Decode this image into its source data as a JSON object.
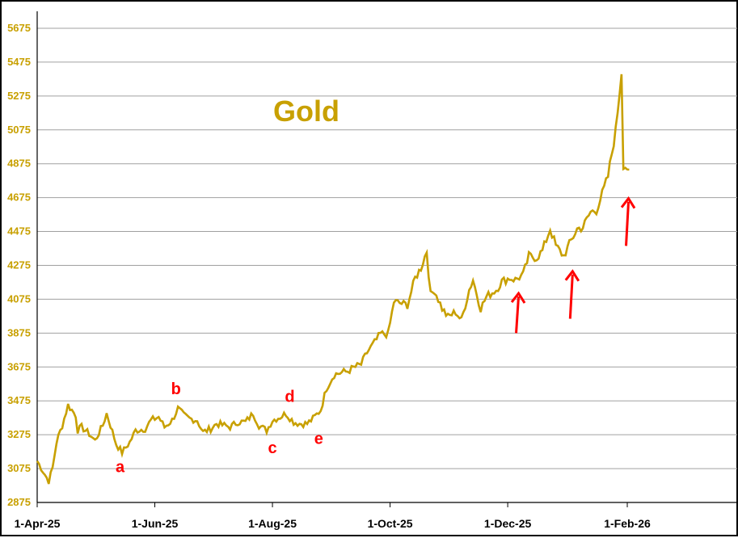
{
  "chart_data": {
    "type": "line",
    "title": "Gold",
    "xlabel": "",
    "ylabel": "",
    "y_ticks": [
      "2875",
      "3075",
      "3275",
      "3475",
      "3675",
      "3875",
      "4075",
      "4275",
      "4475",
      "4675",
      "4875",
      "5075",
      "5275",
      "5475",
      "5675"
    ],
    "ylim": [
      2875,
      5775
    ],
    "x_ticks": [
      "1-Apr-25",
      "1-Jun-25",
      "1-Aug-25",
      "1-Oct-25",
      "1-Dec-25",
      "1-Feb-26"
    ],
    "xlim": [
      "2025-04-01",
      "2026-03-30"
    ],
    "grid": "horizontal",
    "legend": "none",
    "colors": {
      "line": "#c8a000",
      "title": "#c8a000",
      "annotation": "#ff0000",
      "grid": "#a0a0a0"
    },
    "series": [
      {
        "x": [
          "2025-04-01",
          "2025-04-03",
          "2025-04-07",
          "2025-04-09",
          "2025-04-11",
          "2025-04-14",
          "2025-04-17",
          "2025-04-21",
          "2025-04-22",
          "2025-04-24",
          "2025-04-28",
          "2025-05-01",
          "2025-05-05",
          "2025-05-07",
          "2025-05-09",
          "2025-05-12",
          "2025-05-15",
          "2025-05-19",
          "2025-05-22",
          "2025-05-27",
          "2025-05-30",
          "2025-06-03",
          "2025-06-06",
          "2025-06-10",
          "2025-06-13",
          "2025-06-16",
          "2025-06-19",
          "2025-06-23",
          "2025-06-26",
          "2025-06-30",
          "2025-07-03",
          "2025-07-07",
          "2025-07-10",
          "2025-07-14",
          "2025-07-18",
          "2025-07-22",
          "2025-07-25",
          "2025-07-29",
          "2025-08-01",
          "2025-08-05",
          "2025-08-08",
          "2025-08-12",
          "2025-08-15",
          "2025-08-19",
          "2025-08-22",
          "2025-08-26",
          "2025-08-29",
          "2025-09-02",
          "2025-09-05",
          "2025-09-09",
          "2025-09-12",
          "2025-09-16",
          "2025-09-19",
          "2025-09-23",
          "2025-09-26",
          "2025-09-30",
          "2025-10-03",
          "2025-10-07",
          "2025-10-10",
          "2025-10-14",
          "2025-10-17",
          "2025-10-20",
          "2025-10-22",
          "2025-10-24",
          "2025-10-28",
          "2025-10-31",
          "2025-11-04",
          "2025-11-07",
          "2025-11-11",
          "2025-11-13",
          "2025-11-17",
          "2025-11-20",
          "2025-11-25",
          "2025-11-28",
          "2025-12-02",
          "2025-12-05",
          "2025-12-09",
          "2025-12-12",
          "2025-12-16",
          "2025-12-19",
          "2025-12-23",
          "2025-12-26",
          "2025-12-30",
          "2026-01-02",
          "2026-01-06",
          "2026-01-09",
          "2026-01-13",
          "2026-01-16",
          "2026-01-20",
          "2026-01-22",
          "2026-01-26",
          "2026-01-28",
          "2026-01-29",
          "2026-01-30",
          "2026-02-02"
        ],
        "y": [
          3120,
          3080,
          3000,
          3080,
          3230,
          3330,
          3450,
          3390,
          3300,
          3320,
          3280,
          3240,
          3330,
          3400,
          3330,
          3220,
          3170,
          3230,
          3300,
          3310,
          3360,
          3380,
          3320,
          3360,
          3430,
          3390,
          3370,
          3360,
          3290,
          3310,
          3340,
          3330,
          3320,
          3350,
          3350,
          3400,
          3330,
          3300,
          3360,
          3380,
          3400,
          3350,
          3340,
          3340,
          3370,
          3420,
          3550,
          3630,
          3640,
          3650,
          3670,
          3690,
          3760,
          3820,
          3870,
          3870,
          4060,
          4050,
          4040,
          4200,
          4260,
          4360,
          4100,
          4130,
          4020,
          3970,
          4000,
          3950,
          4130,
          4190,
          4020,
          4090,
          4130,
          4180,
          4200,
          4190,
          4220,
          4330,
          4320,
          4360,
          4490,
          4390,
          4330,
          4400,
          4490,
          4500,
          4590,
          4600,
          4730,
          4800,
          5070,
          5300,
          5420,
          4870,
          4840
        ]
      }
    ],
    "annotations": [
      {
        "text": "a",
        "x": "2025-05-14",
        "y": 3055
      },
      {
        "text": "b",
        "x": "2025-06-12",
        "y": 3515
      },
      {
        "text": "c",
        "x": "2025-08-01",
        "y": 3165
      },
      {
        "text": "d",
        "x": "2025-08-10",
        "y": 3470
      },
      {
        "text": "e",
        "x": "2025-08-25",
        "y": 3220
      }
    ],
    "arrows": [
      {
        "x": "2025-12-06",
        "y_from": 3875,
        "y_to": 4110
      },
      {
        "x": "2026-01-03",
        "y_from": 3960,
        "y_to": 4240
      },
      {
        "x": "2026-02-01",
        "y_from": 4390,
        "y_to": 4670
      }
    ]
  }
}
